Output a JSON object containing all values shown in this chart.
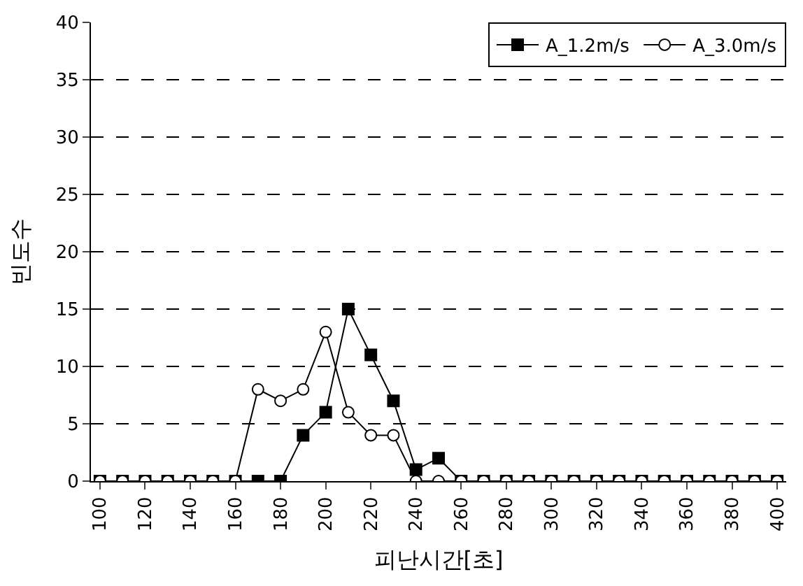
{
  "chart_data": {
    "type": "line",
    "xlabel": "피난시간[초]",
    "ylabel": "빈도수",
    "x": [
      100,
      110,
      120,
      130,
      140,
      150,
      160,
      170,
      180,
      190,
      200,
      210,
      220,
      230,
      240,
      250,
      260,
      270,
      280,
      290,
      300,
      310,
      320,
      330,
      340,
      350,
      360,
      370,
      380,
      390,
      400
    ],
    "series": [
      {
        "name": "A_1.2m/s",
        "color": "#000000",
        "marker": "square",
        "values": [
          0,
          0,
          0,
          0,
          0,
          0,
          0,
          0,
          0,
          4,
          6,
          15,
          11,
          7,
          1,
          2,
          0,
          0,
          0,
          0,
          0,
          0,
          0,
          0,
          0,
          0,
          0,
          0,
          0,
          0,
          0
        ]
      },
      {
        "name": "A_3.0m/s",
        "color": "#000000",
        "marker": "circle",
        "values": [
          0,
          0,
          0,
          0,
          0,
          0,
          0,
          8,
          7,
          8,
          13,
          6,
          4,
          4,
          0,
          0,
          0,
          0,
          0,
          0,
          0,
          0,
          0,
          0,
          0,
          0,
          0,
          0,
          0,
          0,
          0
        ]
      }
    ],
    "xlim": [
      96,
      404
    ],
    "xticks": [
      100,
      120,
      140,
      160,
      180,
      200,
      220,
      240,
      260,
      280,
      300,
      320,
      340,
      360,
      380,
      400
    ],
    "ylim": [
      0,
      40
    ],
    "yticks": [
      0,
      5,
      10,
      15,
      20,
      25,
      30,
      35,
      40
    ],
    "grid": "y",
    "legend": "top right",
    "line_style": "solid"
  }
}
